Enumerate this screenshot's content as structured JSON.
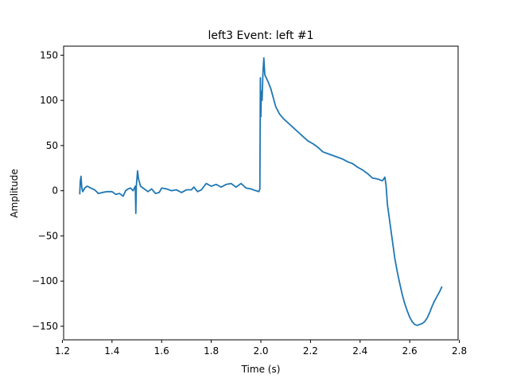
{
  "chart_data": {
    "type": "line",
    "title": "left3 Event: left #1",
    "xlabel": "Time (s)",
    "ylabel": "Amplitude",
    "xlim": [
      1.205,
      2.795
    ],
    "ylim": [
      -165,
      160
    ],
    "xticks": [
      1.2,
      1.4,
      1.6,
      1.8,
      2.0,
      2.2,
      2.4,
      2.6,
      2.8
    ],
    "xtick_labels": [
      "1.2",
      "1.4",
      "1.6",
      "1.8",
      "2.0",
      "2.2",
      "2.4",
      "2.6",
      "2.8"
    ],
    "yticks": [
      -150,
      -100,
      -50,
      0,
      50,
      100,
      150
    ],
    "ytick_labels": [
      "−150",
      "−100",
      "−50",
      "0",
      "50",
      "100",
      "150"
    ],
    "grid": false,
    "line_color": "#1f77b4",
    "series": [
      {
        "points": [
          [
            1.27,
            -4
          ],
          [
            1.272,
            10
          ],
          [
            1.275,
            16
          ],
          [
            1.278,
            4
          ],
          [
            1.282,
            -1
          ],
          [
            1.29,
            3
          ],
          [
            1.3,
            5
          ],
          [
            1.315,
            3
          ],
          [
            1.33,
            1
          ],
          [
            1.345,
            -3
          ],
          [
            1.36,
            -2
          ],
          [
            1.38,
            -1
          ],
          [
            1.4,
            -1
          ],
          [
            1.415,
            -4
          ],
          [
            1.43,
            -3
          ],
          [
            1.445,
            -6
          ],
          [
            1.455,
            0
          ],
          [
            1.465,
            2
          ],
          [
            1.475,
            3
          ],
          [
            1.485,
            0
          ],
          [
            1.494,
            5
          ],
          [
            1.496,
            -25
          ],
          [
            1.498,
            5
          ],
          [
            1.503,
            22
          ],
          [
            1.507,
            13
          ],
          [
            1.515,
            5
          ],
          [
            1.53,
            2
          ],
          [
            1.545,
            -1
          ],
          [
            1.56,
            2
          ],
          [
            1.575,
            -3
          ],
          [
            1.59,
            -2
          ],
          [
            1.6,
            3
          ],
          [
            1.62,
            2
          ],
          [
            1.64,
            0
          ],
          [
            1.66,
            1
          ],
          [
            1.68,
            -2
          ],
          [
            1.7,
            1
          ],
          [
            1.72,
            1
          ],
          [
            1.73,
            4
          ],
          [
            1.745,
            -1
          ],
          [
            1.76,
            1
          ],
          [
            1.78,
            8
          ],
          [
            1.8,
            5
          ],
          [
            1.82,
            7
          ],
          [
            1.84,
            4
          ],
          [
            1.86,
            7
          ],
          [
            1.88,
            8
          ],
          [
            1.9,
            4
          ],
          [
            1.92,
            8
          ],
          [
            1.94,
            3
          ],
          [
            1.96,
            2
          ],
          [
            1.98,
            0
          ],
          [
            1.992,
            -1
          ],
          [
            1.996,
            2
          ],
          [
            1.998,
            125
          ],
          [
            2.0,
            82
          ],
          [
            2.002,
            110
          ],
          [
            2.005,
            100
          ],
          [
            2.008,
            128
          ],
          [
            2.012,
            147
          ],
          [
            2.016,
            128
          ],
          [
            2.02,
            126
          ],
          [
            2.03,
            120
          ],
          [
            2.04,
            113
          ],
          [
            2.05,
            103
          ],
          [
            2.06,
            93
          ],
          [
            2.075,
            85
          ],
          [
            2.09,
            80
          ],
          [
            2.11,
            75
          ],
          [
            2.13,
            70
          ],
          [
            2.15,
            65
          ],
          [
            2.17,
            60
          ],
          [
            2.19,
            55
          ],
          [
            2.21,
            52
          ],
          [
            2.23,
            48
          ],
          [
            2.25,
            43
          ],
          [
            2.27,
            41
          ],
          [
            2.29,
            39
          ],
          [
            2.31,
            37
          ],
          [
            2.33,
            35
          ],
          [
            2.35,
            32
          ],
          [
            2.37,
            30
          ],
          [
            2.39,
            26
          ],
          [
            2.41,
            23
          ],
          [
            2.43,
            19
          ],
          [
            2.45,
            14
          ],
          [
            2.47,
            13
          ],
          [
            2.49,
            11
          ],
          [
            2.5,
            15
          ],
          [
            2.505,
            5
          ],
          [
            2.51,
            -15
          ],
          [
            2.515,
            -25
          ],
          [
            2.52,
            -35
          ],
          [
            2.53,
            -55
          ],
          [
            2.54,
            -75
          ],
          [
            2.55,
            -90
          ],
          [
            2.56,
            -103
          ],
          [
            2.57,
            -115
          ],
          [
            2.58,
            -125
          ],
          [
            2.59,
            -133
          ],
          [
            2.6,
            -140
          ],
          [
            2.61,
            -145
          ],
          [
            2.62,
            -148
          ],
          [
            2.63,
            -149
          ],
          [
            2.64,
            -148
          ],
          [
            2.65,
            -147
          ],
          [
            2.66,
            -145
          ],
          [
            2.67,
            -141
          ],
          [
            2.68,
            -135
          ],
          [
            2.69,
            -128
          ],
          [
            2.7,
            -122
          ],
          [
            2.71,
            -117
          ],
          [
            2.72,
            -112
          ],
          [
            2.73,
            -106
          ]
        ]
      }
    ]
  }
}
